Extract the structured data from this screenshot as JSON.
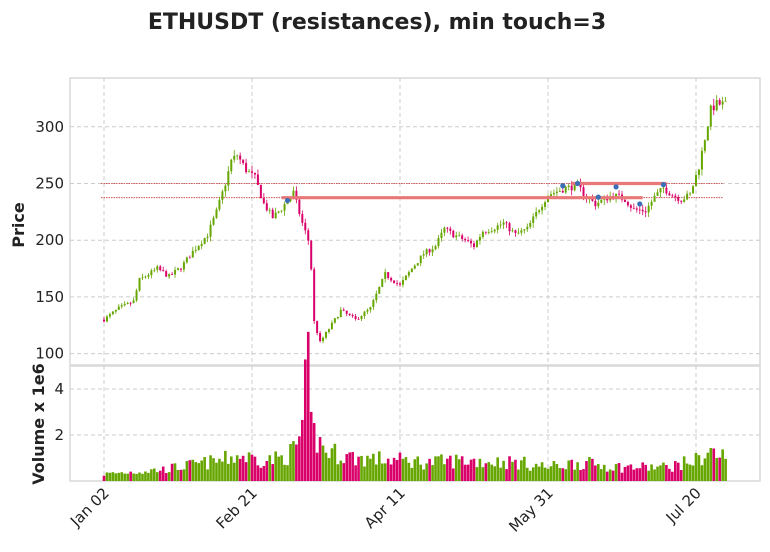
{
  "chart_data": {
    "type": "candlestick",
    "title": "ETHUSDT (resistances), min touch=3",
    "price_panel": {
      "ylabel": "Price",
      "ylim": [
        90,
        343
      ],
      "yticks": [
        100,
        150,
        200,
        250,
        300
      ],
      "grid": true
    },
    "volume_panel": {
      "ylabel": "Volume x 1e6",
      "ylim": [
        0,
        5
      ],
      "yticks": [
        2,
        4
      ],
      "grid": true
    },
    "x_axis": {
      "tick_labels": [
        "Jan 02",
        "Feb 21",
        "Apr 11",
        "May 31",
        "Jul 20"
      ],
      "tick_index": [
        0,
        50,
        100,
        150,
        200
      ],
      "n_days": 211
    },
    "resistance_lines": [
      {
        "level": 237.5,
        "start_index": 60,
        "end_index": 182
      },
      {
        "level": 250.0,
        "start_index": 158,
        "end_index": 190
      }
    ],
    "touch_points": [
      {
        "index": 62,
        "price": 235
      },
      {
        "index": 155,
        "price": 248
      },
      {
        "index": 160,
        "price": 250
      },
      {
        "index": 167,
        "price": 238
      },
      {
        "index": 173,
        "price": 247
      },
      {
        "index": 181,
        "price": 232
      },
      {
        "index": 189,
        "price": 249
      }
    ],
    "price_anchors": [
      [
        0,
        130
      ],
      [
        5,
        140
      ],
      [
        10,
        146
      ],
      [
        12,
        165
      ],
      [
        15,
        170
      ],
      [
        18,
        175
      ],
      [
        22,
        168
      ],
      [
        26,
        176
      ],
      [
        30,
        190
      ],
      [
        35,
        205
      ],
      [
        38,
        225
      ],
      [
        41,
        250
      ],
      [
        43,
        270
      ],
      [
        45,
        275
      ],
      [
        48,
        262
      ],
      [
        51,
        255
      ],
      [
        54,
        232
      ],
      [
        57,
        220
      ],
      [
        60,
        228
      ],
      [
        64,
        242
      ],
      [
        67,
        215
      ],
      [
        69,
        200
      ],
      [
        70,
        175
      ],
      [
        71,
        128
      ],
      [
        73,
        110
      ],
      [
        76,
        122
      ],
      [
        80,
        138
      ],
      [
        85,
        130
      ],
      [
        90,
        140
      ],
      [
        95,
        170
      ],
      [
        100,
        160
      ],
      [
        104,
        175
      ],
      [
        108,
        188
      ],
      [
        112,
        195
      ],
      [
        115,
        210
      ],
      [
        118,
        205
      ],
      [
        122,
        200
      ],
      [
        125,
        195
      ],
      [
        128,
        208
      ],
      [
        131,
        210
      ],
      [
        135,
        215
      ],
      [
        139,
        205
      ],
      [
        143,
        210
      ],
      [
        147,
        228
      ],
      [
        150,
        240
      ],
      [
        153,
        243
      ],
      [
        156,
        246
      ],
      [
        160,
        248
      ],
      [
        163,
        238
      ],
      [
        166,
        232
      ],
      [
        169,
        236
      ],
      [
        172,
        240
      ],
      [
        176,
        236
      ],
      [
        179,
        227
      ],
      [
        183,
        226
      ],
      [
        186,
        238
      ],
      [
        189,
        246
      ],
      [
        192,
        240
      ],
      [
        195,
        236
      ],
      [
        198,
        240
      ],
      [
        201,
        265
      ],
      [
        203,
        290
      ],
      [
        205,
        315
      ],
      [
        207,
        320
      ]
    ],
    "volume_anchors": [
      [
        0,
        0.3
      ],
      [
        20,
        0.5
      ],
      [
        40,
        0.9
      ],
      [
        45,
        1.1
      ],
      [
        55,
        0.9
      ],
      [
        60,
        1.0
      ],
      [
        63,
        1.2
      ],
      [
        65,
        1.5
      ],
      [
        67,
        2.4
      ],
      [
        68,
        3.8
      ],
      [
        69,
        4.7
      ],
      [
        70,
        2.3
      ],
      [
        72,
        1.8
      ],
      [
        75,
        1.3
      ],
      [
        85,
        1.0
      ],
      [
        100,
        0.9
      ],
      [
        110,
        0.8
      ],
      [
        120,
        0.9
      ],
      [
        140,
        0.8
      ],
      [
        150,
        0.6
      ],
      [
        160,
        0.8
      ],
      [
        175,
        0.6
      ],
      [
        190,
        0.6
      ],
      [
        200,
        0.9
      ],
      [
        205,
        1.3
      ],
      [
        207,
        1.1
      ]
    ],
    "colors": {
      "up": "#66a600",
      "down": "#d90069",
      "resistance_line": "#e87878",
      "resistance_guide": "#cc3333",
      "touch_marker": "#3a6fb5"
    }
  }
}
